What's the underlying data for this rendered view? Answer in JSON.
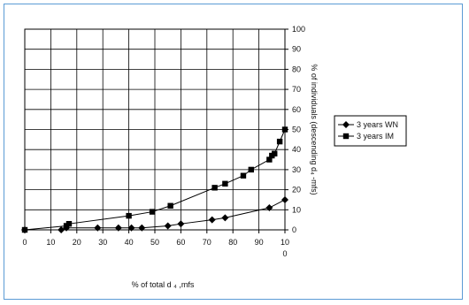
{
  "chart_data": {
    "type": "line",
    "title": "",
    "xlabel": "% of total d ₄ ,mfs",
    "ylabel": "% of individuals (descending d₄ -mfs)",
    "xlim": [
      0,
      100
    ],
    "ylim": [
      0,
      100
    ],
    "x_ticks": [
      "0",
      "10",
      "20",
      "30",
      "40",
      "50",
      "60",
      "70",
      "80",
      "90",
      "10"
    ],
    "x_tick_extra": "0",
    "y_ticks": [
      "0",
      "10",
      "20",
      "30",
      "40",
      "50",
      "60",
      "70",
      "80",
      "90",
      "100"
    ],
    "grid": true,
    "legend_position": "right",
    "series": [
      {
        "name": "3 years WN",
        "marker": "diamond",
        "color": "#000000",
        "x": [
          0,
          14,
          16,
          28,
          36,
          41,
          45,
          55,
          60,
          72,
          77,
          94,
          100
        ],
        "y": [
          0,
          0,
          1,
          1,
          1,
          1,
          1,
          2,
          3,
          5,
          6,
          11,
          15
        ]
      },
      {
        "name": "3 years IM",
        "marker": "square",
        "color": "#000000",
        "x": [
          0,
          16,
          17,
          40,
          49,
          56,
          73,
          77,
          84,
          87,
          94,
          95,
          96,
          98,
          100
        ],
        "y": [
          0,
          2,
          3,
          7,
          9,
          12,
          21,
          23,
          27,
          30,
          35,
          37,
          38,
          44,
          50
        ]
      }
    ]
  }
}
